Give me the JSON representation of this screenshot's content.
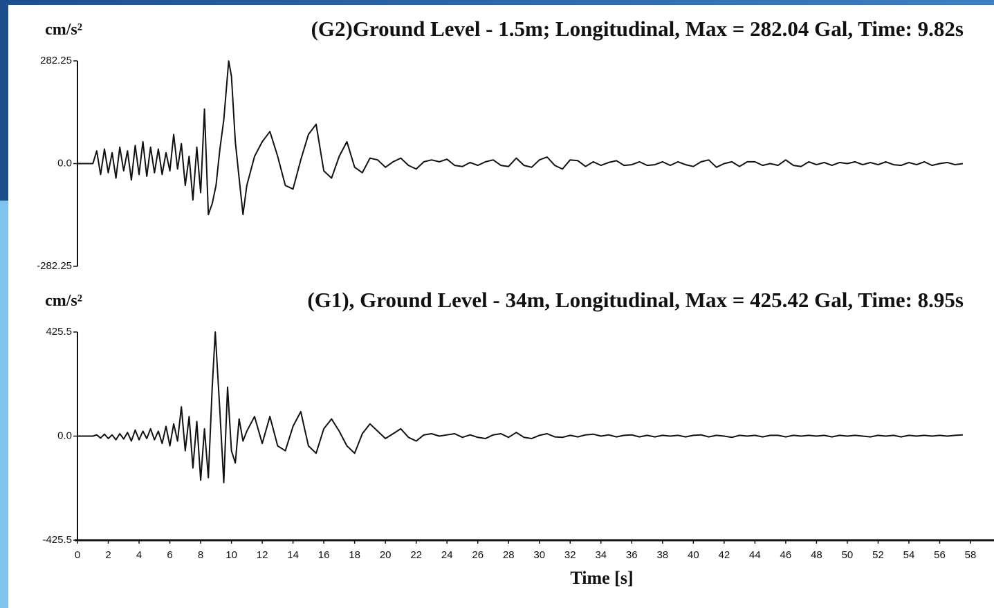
{
  "chart_data": [
    {
      "type": "line",
      "title": "(G2)Ground Level - 1.5m; Longitudinal, Max = 282.04 Gal, Time: 9.82s",
      "ylabel": "cm/s²",
      "xlim": [
        0,
        58
      ],
      "ylim": [
        -282.25,
        282.25
      ],
      "yticks": [
        282.25,
        {
          "value": 0,
          "label": "0.0"
        },
        -282.25
      ],
      "x": [
        0,
        0.5,
        1,
        1.25,
        1.5,
        1.75,
        2,
        2.25,
        2.5,
        2.75,
        3,
        3.25,
        3.5,
        3.75,
        4,
        4.25,
        4.5,
        4.75,
        5,
        5.25,
        5.5,
        5.75,
        6,
        6.25,
        6.5,
        6.75,
        7,
        7.25,
        7.5,
        7.75,
        8,
        8.25,
        8.5,
        8.75,
        9,
        9.25,
        9.5,
        9.82,
        10,
        10.25,
        10.5,
        10.75,
        11,
        11.5,
        12,
        12.5,
        13,
        13.5,
        14,
        14.5,
        15,
        15.5,
        16,
        16.5,
        17,
        17.5,
        18,
        18.5,
        19,
        19.5,
        20,
        20.5,
        21,
        21.5,
        22,
        22.5,
        23,
        23.5,
        24,
        24.5,
        25,
        25.5,
        26,
        26.5,
        27,
        27.5,
        28,
        28.5,
        29,
        29.5,
        30,
        30.5,
        31,
        31.5,
        32,
        32.5,
        33,
        33.5,
        34,
        34.5,
        35,
        35.5,
        36,
        36.5,
        37,
        37.5,
        38,
        38.5,
        39,
        39.5,
        40,
        40.5,
        41,
        41.5,
        42,
        42.5,
        43,
        43.5,
        44,
        44.5,
        45,
        45.5,
        46,
        46.5,
        47,
        47.5,
        48,
        48.5,
        49,
        49.5,
        50,
        50.5,
        51,
        51.5,
        52,
        52.5,
        53,
        53.5,
        54,
        54.5,
        55,
        55.5,
        56,
        56.5,
        57,
        57.5
      ],
      "values": [
        0,
        0,
        0,
        35,
        -30,
        40,
        -25,
        30,
        -40,
        45,
        -20,
        35,
        -45,
        50,
        -30,
        60,
        -35,
        45,
        -25,
        40,
        -30,
        30,
        -20,
        80,
        -15,
        55,
        -60,
        20,
        -100,
        45,
        -80,
        150,
        -140,
        -110,
        -60,
        40,
        120,
        282.04,
        240,
        60,
        -40,
        -140,
        -60,
        20,
        60,
        88,
        20,
        -60,
        -70,
        10,
        80,
        108,
        -20,
        -40,
        20,
        60,
        -10,
        -25,
        15,
        10,
        -10,
        5,
        15,
        -5,
        -15,
        5,
        10,
        5,
        12,
        -5,
        -8,
        3,
        -5,
        5,
        10,
        -5,
        -8,
        15,
        -5,
        -10,
        10,
        18,
        -5,
        -15,
        10,
        8,
        -8,
        5,
        -5,
        3,
        8,
        -5,
        -3,
        5,
        -5,
        -3,
        5,
        -5,
        5,
        -3,
        -8,
        5,
        10,
        -10,
        0,
        5,
        -8,
        5,
        5,
        -5,
        0,
        -5,
        10,
        -5,
        -8,
        5,
        -3,
        3,
        -5,
        3,
        0,
        5,
        -3,
        3,
        -3,
        5,
        -3,
        -5,
        3,
        -3,
        5,
        -5,
        0,
        3,
        -3,
        0
      ],
      "color": "#111111"
    },
    {
      "type": "line",
      "title": "(G1), Ground Level - 34m, Longitudinal, Max = 425.42 Gal, Time: 8.95s",
      "ylabel": "cm/s²",
      "xlabel": "Time [s]",
      "xlim": [
        0,
        58
      ],
      "ylim": [
        -425.5,
        425.5
      ],
      "xticks": [
        0,
        2,
        4,
        6,
        8,
        10,
        12,
        14,
        16,
        18,
        20,
        22,
        24,
        26,
        28,
        30,
        32,
        34,
        36,
        38,
        40,
        42,
        44,
        46,
        48,
        50,
        52,
        54,
        56,
        58
      ],
      "yticks": [
        425.5,
        {
          "value": 0,
          "label": "0.0"
        },
        -425.5
      ],
      "x": [
        0,
        0.5,
        1,
        1.25,
        1.5,
        1.75,
        2,
        2.25,
        2.5,
        2.75,
        3,
        3.25,
        3.5,
        3.75,
        4,
        4.25,
        4.5,
        4.75,
        5,
        5.25,
        5.5,
        5.75,
        6,
        6.25,
        6.5,
        6.75,
        7,
        7.25,
        7.5,
        7.75,
        8,
        8.25,
        8.5,
        8.75,
        8.95,
        9.25,
        9.5,
        9.75,
        10,
        10.25,
        10.5,
        10.75,
        11,
        11.5,
        12,
        12.5,
        13,
        13.5,
        14,
        14.5,
        15,
        15.5,
        16,
        16.5,
        17,
        17.5,
        18,
        18.5,
        19,
        19.5,
        20,
        20.5,
        21,
        21.5,
        22,
        22.5,
        23,
        23.5,
        24,
        24.5,
        25,
        25.5,
        26,
        26.5,
        27,
        27.5,
        28,
        28.5,
        29,
        29.5,
        30,
        30.5,
        31,
        31.5,
        32,
        32.5,
        33,
        33.5,
        34,
        34.5,
        35,
        35.5,
        36,
        36.5,
        37,
        37.5,
        38,
        38.5,
        39,
        39.5,
        40,
        40.5,
        41,
        41.5,
        42,
        42.5,
        43,
        43.5,
        44,
        44.5,
        45,
        45.5,
        46,
        46.5,
        47,
        47.5,
        48,
        48.5,
        49,
        49.5,
        50,
        50.5,
        51,
        51.5,
        52,
        52.5,
        53,
        53.5,
        54,
        54.5,
        55,
        55.5,
        56,
        56.5,
        57,
        57.5
      ],
      "values": [
        0,
        0,
        0,
        5,
        -8,
        8,
        -10,
        5,
        -15,
        10,
        -12,
        15,
        -20,
        25,
        -15,
        20,
        -10,
        30,
        -15,
        20,
        -30,
        40,
        -40,
        50,
        -20,
        120,
        -60,
        80,
        -130,
        60,
        -180,
        30,
        -170,
        200,
        425.42,
        100,
        -190,
        200,
        -60,
        -110,
        70,
        -20,
        20,
        80,
        -30,
        80,
        -40,
        -60,
        40,
        100,
        -40,
        -70,
        30,
        70,
        20,
        -40,
        -70,
        10,
        50,
        20,
        -10,
        10,
        30,
        -5,
        -20,
        5,
        10,
        0,
        5,
        10,
        -5,
        5,
        -5,
        -10,
        5,
        10,
        -5,
        15,
        -5,
        -10,
        3,
        10,
        -3,
        -5,
        3,
        -3,
        5,
        8,
        0,
        5,
        -3,
        3,
        5,
        -3,
        3,
        -3,
        3,
        0,
        3,
        -3,
        3,
        5,
        -3,
        3,
        0,
        -5,
        3,
        0,
        3,
        -3,
        3,
        3,
        -3,
        3,
        0,
        3,
        0,
        3,
        -3,
        3,
        0,
        3,
        0,
        -3,
        3,
        0,
        3,
        -3,
        3,
        0,
        3,
        0,
        3,
        0,
        3,
        5
      ],
      "color": "#111111"
    }
  ]
}
